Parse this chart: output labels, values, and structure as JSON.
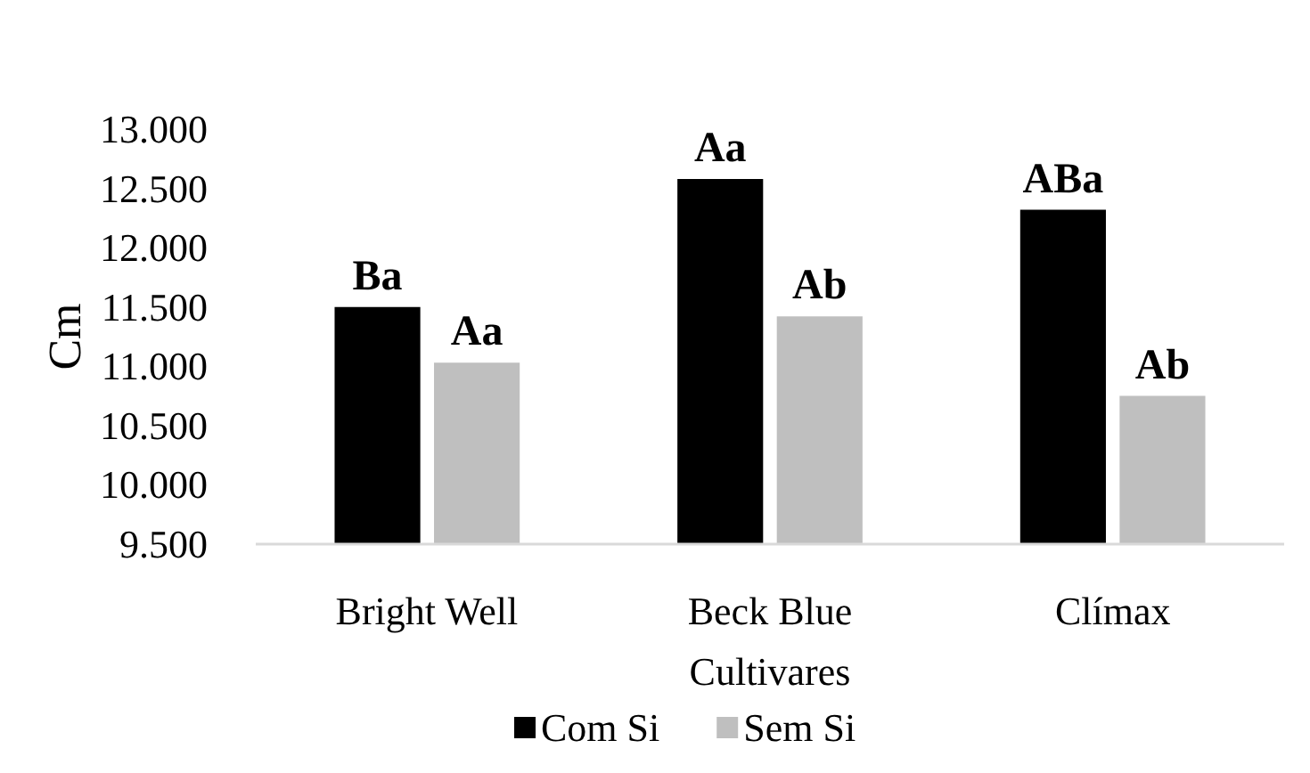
{
  "chart_data": {
    "type": "bar",
    "xlabel": "Cultivares",
    "ylabel": "Cm",
    "categories": [
      "Bright Well",
      "Beck Blue",
      "Clímax"
    ],
    "series": [
      {
        "name": "Com Si",
        "color": "#000000",
        "values": [
          11.5,
          12.58,
          12.32
        ],
        "value_labels": [
          "Ba",
          "Aa",
          "ABa"
        ]
      },
      {
        "name": "Sem Si",
        "color": "#bfbfbf",
        "values": [
          11.03,
          11.42,
          10.75
        ],
        "value_labels": [
          "Aa",
          "Ab",
          "Ab"
        ]
      }
    ],
    "ylim": [
      9.5,
      13
    ],
    "yticks": [
      {
        "value": 9.5,
        "label": "9.500"
      },
      {
        "value": 10,
        "label": "10.000"
      },
      {
        "value": 10.5,
        "label": "10.500"
      },
      {
        "value": 11,
        "label": "11.000"
      },
      {
        "value": 11.5,
        "label": "11.500"
      },
      {
        "value": 12,
        "label": "12.000"
      },
      {
        "value": 12.5,
        "label": "12.500"
      },
      {
        "value": 13,
        "label": "13.000"
      }
    ],
    "legend": "bottom"
  }
}
